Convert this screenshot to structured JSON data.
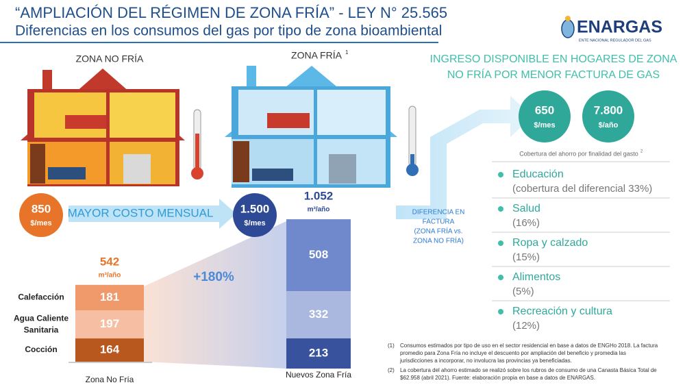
{
  "header": {
    "title": "“AMPLIACIÓN DEL RÉGIMEN DE ZONA FRÍA” - LEY N° 25.565",
    "subtitle": "Diferencias en los consumos del gas por tipo de zona bioambiental",
    "logo": "ENARGAS",
    "logo_sub": "ENTE NACIONAL REGULADOR DEL GAS"
  },
  "zones": {
    "no_fria": "ZONA NO FRÍA",
    "fria": "ZONA FRÍA",
    "fria_note": "1"
  },
  "costs": {
    "no_fria": {
      "value": "850",
      "unit": "$/mes"
    },
    "fria": {
      "value": "1.500",
      "unit": "$/mes"
    },
    "arrow_label": "MAYOR COSTO MENSUAL"
  },
  "bars": [
    {
      "name": "Zona No Fría",
      "total": "542",
      "unit": "m³/año",
      "segments": [
        {
          "name": [
            "Calefacción"
          ],
          "value": 181,
          "color": "#f09a6c"
        },
        {
          "name": [
            "Agua Caliente",
            "Sanitaria"
          ],
          "value": 197,
          "color": "#f6bfa4"
        },
        {
          "name": [
            "Cocción"
          ],
          "value": 164,
          "color": "#b9581e"
        }
      ]
    },
    {
      "name": "Nuevos Zona Fría",
      "total": "1.052",
      "unit": "m³/año",
      "segments": [
        {
          "value": 508,
          "color": "#7089cd"
        },
        {
          "value": 332,
          "color": "#aab7df"
        },
        {
          "value": 213,
          "color": "#38529e"
        }
      ]
    }
  ],
  "increase": "+180%",
  "difference": [
    "DIFERENCIA EN",
    "FACTURA",
    "(ZONA FRÍA vs.",
    "ZONA NO FRÍA)"
  ],
  "income": {
    "heading": [
      "INGRESO DISPONIBLE EN HOGARES DE ZONA",
      "NO FRÍA POR MENOR FACTURA DE GAS"
    ],
    "circles": [
      {
        "value": "650",
        "unit": "$/mes"
      },
      {
        "value": "7.800",
        "unit": "$/año"
      }
    ],
    "coverage": "Cobertura del ahorro por finalidad del gasto",
    "coverage_note": "2",
    "items": [
      {
        "name": "Educación",
        "detail": "(cobertura del diferencial 33%)"
      },
      {
        "name": "Salud",
        "detail": "(16%)"
      },
      {
        "name": "Ropa y calzado",
        "detail": "(15%)"
      },
      {
        "name": "Alimentos",
        "detail": "(5%)"
      },
      {
        "name": "Recreación y cultura",
        "detail": "(12%)"
      }
    ]
  },
  "footnotes": [
    {
      "mark": "(1)",
      "lines": [
        "Consumos estimados por tipo de uso en el sector residencial en base a datos de ENGHo 2018. La factura",
        "promedio para Zona Fría no incluye el descuento por ampliación del beneficio y promedia las",
        "jurisdicciones a incorporar, no involucra las provincias ya beneficiadas."
      ]
    },
    {
      "mark": "(2)",
      "lines": [
        "La cobertura del ahorro estimado se realizó sobre los rubros de consumo de una Canasta Básica Total de",
        "$62.958 (abril 2021). Fuente: elaboración propia en base a datos de ENARGAS."
      ]
    }
  ]
}
